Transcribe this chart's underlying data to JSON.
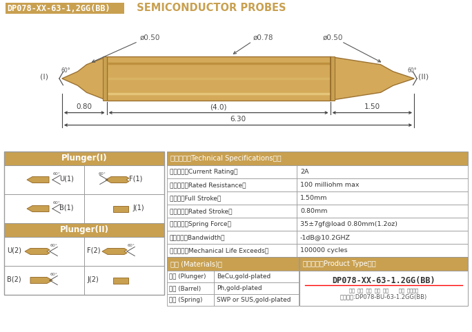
{
  "title_box_text": "DP078-XX-63-1,2GG(BB)",
  "title_main": "  SEMICONDUCTOR PROBES",
  "gold_color": "#C8A050",
  "gold_dark": "#9A7030",
  "gold_mid": "#D4AA5A",
  "border_color": "#999999",
  "dim_color": "#555555",
  "bg_color": "#FFFFFF",
  "specs_header": "技術要求（Technical Specifications）：",
  "specs": [
    [
      "額定電流（Current Rating）",
      "2A"
    ],
    [
      "額定電阻（Rated Resistance）",
      "100 milliohm max"
    ],
    [
      "滿行程（Full Stroke）",
      "1.50mm"
    ],
    [
      "額定行程（Rated Stroke）",
      "0.80mm"
    ],
    [
      "額定彈力（Spring Force）",
      "35±7gf@load 0.80mm(1.2oz)"
    ],
    [
      "頻率帶寬（Bandwidth）",
      "-1dB@10.2GHZ"
    ],
    [
      "測試壽命（Mechanical Life Exceeds）",
      "100000 cycles"
    ]
  ],
  "materials_header": "材質 (Materials)：",
  "materials": [
    [
      "針頭 (Plunger)",
      "BeCu,gold-plated"
    ],
    [
      "針管 (Barrel)",
      "Ph,gold-plated"
    ],
    [
      "彈簧 (Spring)",
      "SWP or SUS,gold-plated"
    ]
  ],
  "product_type_header": "成品型號（Product Type）：",
  "product_type_code": "DP078-XX-63-1.2GG(BB)",
  "product_type_labels": "系列  規格  頭型  總長  彈力       鍍金  針頭材質",
  "product_type_order": "訂購舉例:DP078-BU-63-1.2GG(BB)"
}
